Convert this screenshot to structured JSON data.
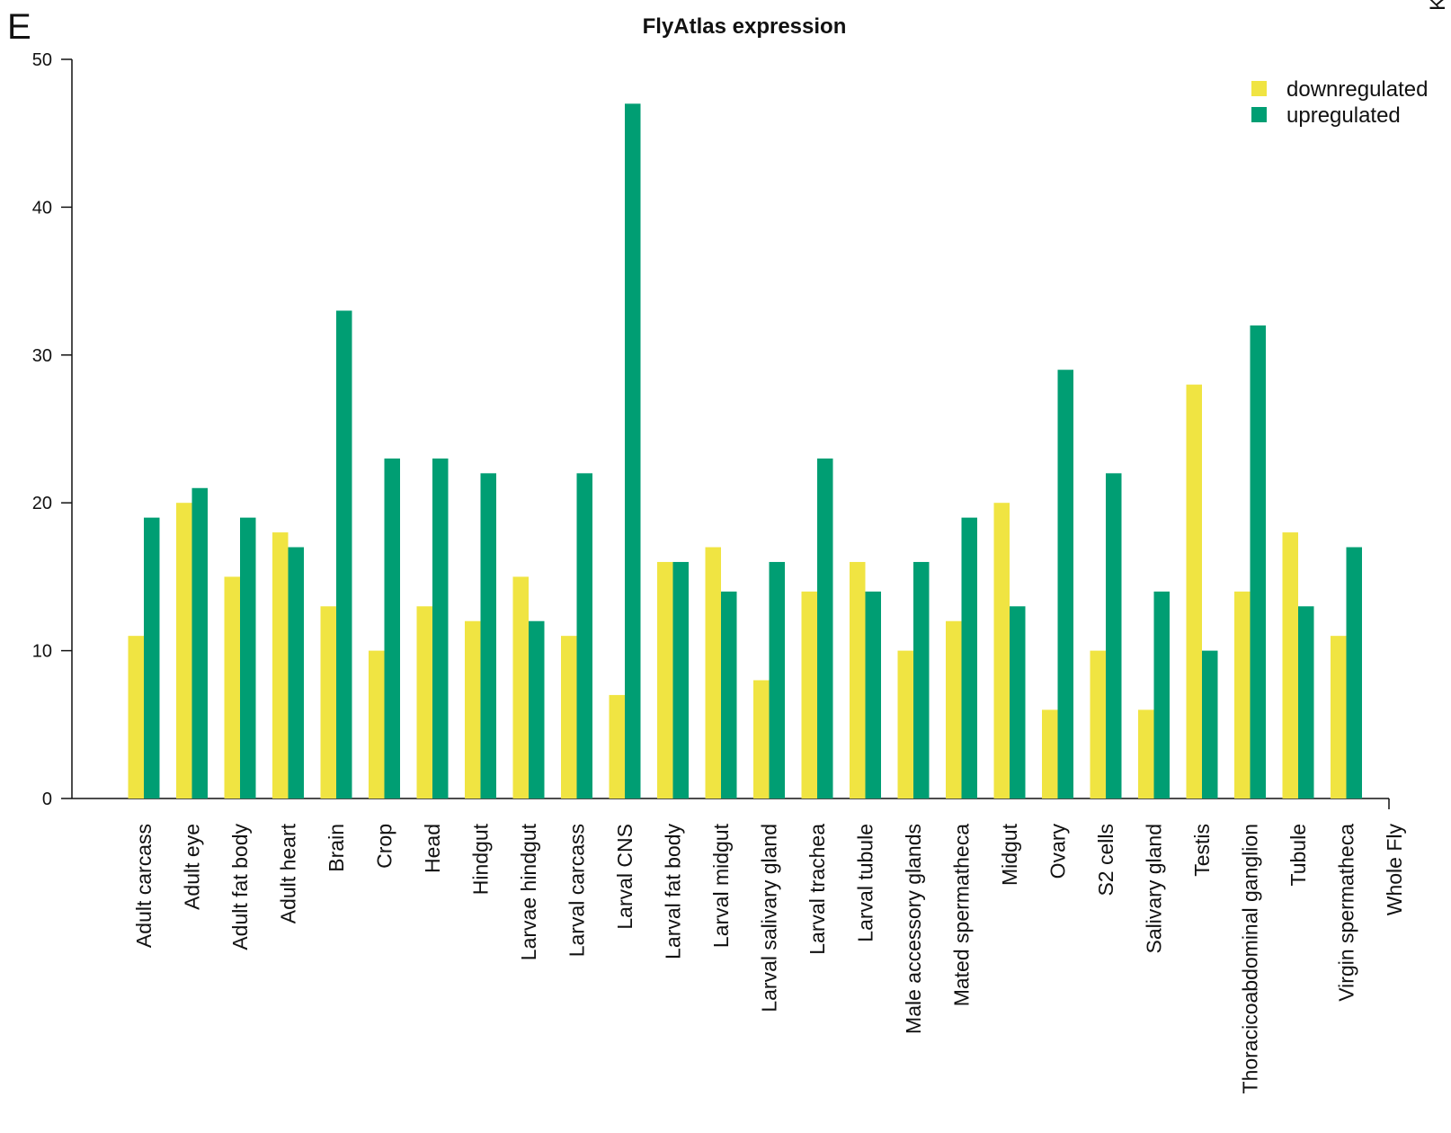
{
  "panel_letter": "E",
  "corner_text": "K",
  "chart_data": {
    "type": "bar",
    "title": "FlyAtlas expression",
    "xlabel": "",
    "ylabel": "",
    "ylim": [
      0,
      50
    ],
    "yticks": [
      0,
      10,
      20,
      30,
      40,
      50
    ],
    "legend_position": "top-right",
    "categories": [
      "Adult carcass",
      "Adult eye",
      "Adult fat body",
      "Adult heart",
      "Brain",
      "Crop",
      "Head",
      "Hindgut",
      "Larvae hindgut",
      "Larval carcass",
      "Larval CNS",
      "Larval fat body",
      "Larval midgut",
      "Larval salivary gland",
      "Larval trachea",
      "Larval tubule",
      "Male accessory glands",
      "Mated spermatheca",
      "Midgut",
      "Ovary",
      "S2 cells",
      "Salivary gland",
      "Testis",
      "Thoracicoabdominal ganglion",
      "Tubule",
      "Virgin spermatheca",
      "Whole Fly"
    ],
    "series": [
      {
        "name": "downregulated",
        "color": "#f0e442",
        "values": [
          11,
          20,
          15,
          18,
          13,
          10,
          13,
          12,
          15,
          11,
          7,
          16,
          17,
          8,
          14,
          16,
          10,
          12,
          20,
          6,
          10,
          6,
          28,
          14,
          18,
          11,
          0
        ]
      },
      {
        "name": "upregulated",
        "color": "#009e73",
        "values": [
          19,
          21,
          19,
          17,
          33,
          23,
          23,
          22,
          12,
          22,
          47,
          16,
          14,
          16,
          23,
          14,
          16,
          19,
          13,
          29,
          22,
          14,
          10,
          32,
          13,
          17,
          0
        ]
      }
    ]
  }
}
